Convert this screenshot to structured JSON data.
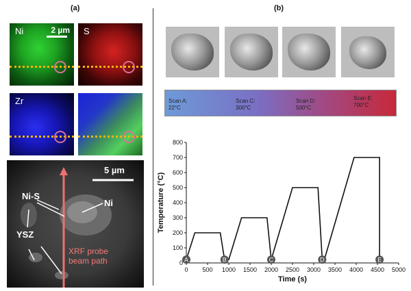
{
  "panels": {
    "a": "(a)",
    "b": "(b)"
  },
  "maps": {
    "ni": "Ni",
    "s": "S",
    "zr": "Zr",
    "scale": "2 µm"
  },
  "sem": {
    "scale": "5 µm",
    "ni_s": "Ni-S",
    "ni": "Ni",
    "ysz": "YSZ",
    "xrf_line1": "XRF probe",
    "xrf_line2": "beam path"
  },
  "scans": [
    {
      "name": "Scan A:",
      "temp": "22°C"
    },
    {
      "name": "Scan C:",
      "temp": "300°C"
    },
    {
      "name": "Scan D:",
      "temp": "500°C"
    },
    {
      "name": "Scan E:",
      "temp": "700°C"
    }
  ],
  "colors": {
    "line": "#111111",
    "marker": "#555555",
    "beam": "#f07070",
    "dots": "#ffb400"
  },
  "chart_data": {
    "type": "line",
    "xlabel": "Time (s)",
    "ylabel": "Temperature (°C)",
    "xlim": [
      0,
      5000
    ],
    "ylim": [
      0,
      800
    ],
    "xticks": [
      0,
      500,
      1000,
      1500,
      2000,
      2500,
      3000,
      3500,
      4000,
      4500,
      5000
    ],
    "yticks": [
      0,
      100,
      200,
      300,
      400,
      500,
      600,
      700,
      800
    ],
    "grid": false,
    "x": [
      0,
      200,
      800,
      900,
      1000,
      1300,
      1900,
      2000,
      2000,
      2500,
      3100,
      3200,
      3250,
      3950,
      4550,
      4550
    ],
    "y": [
      22,
      200,
      200,
      22,
      22,
      300,
      300,
      22,
      22,
      500,
      500,
      22,
      22,
      700,
      700,
      22
    ],
    "markers": [
      {
        "label": "A",
        "x": 0,
        "y": 22
      },
      {
        "label": "B",
        "x": 900,
        "y": 22
      },
      {
        "label": "C",
        "x": 2000,
        "y": 22
      },
      {
        "label": "D",
        "x": 3200,
        "y": 22
      },
      {
        "label": "E",
        "x": 4550,
        "y": 22
      }
    ]
  }
}
